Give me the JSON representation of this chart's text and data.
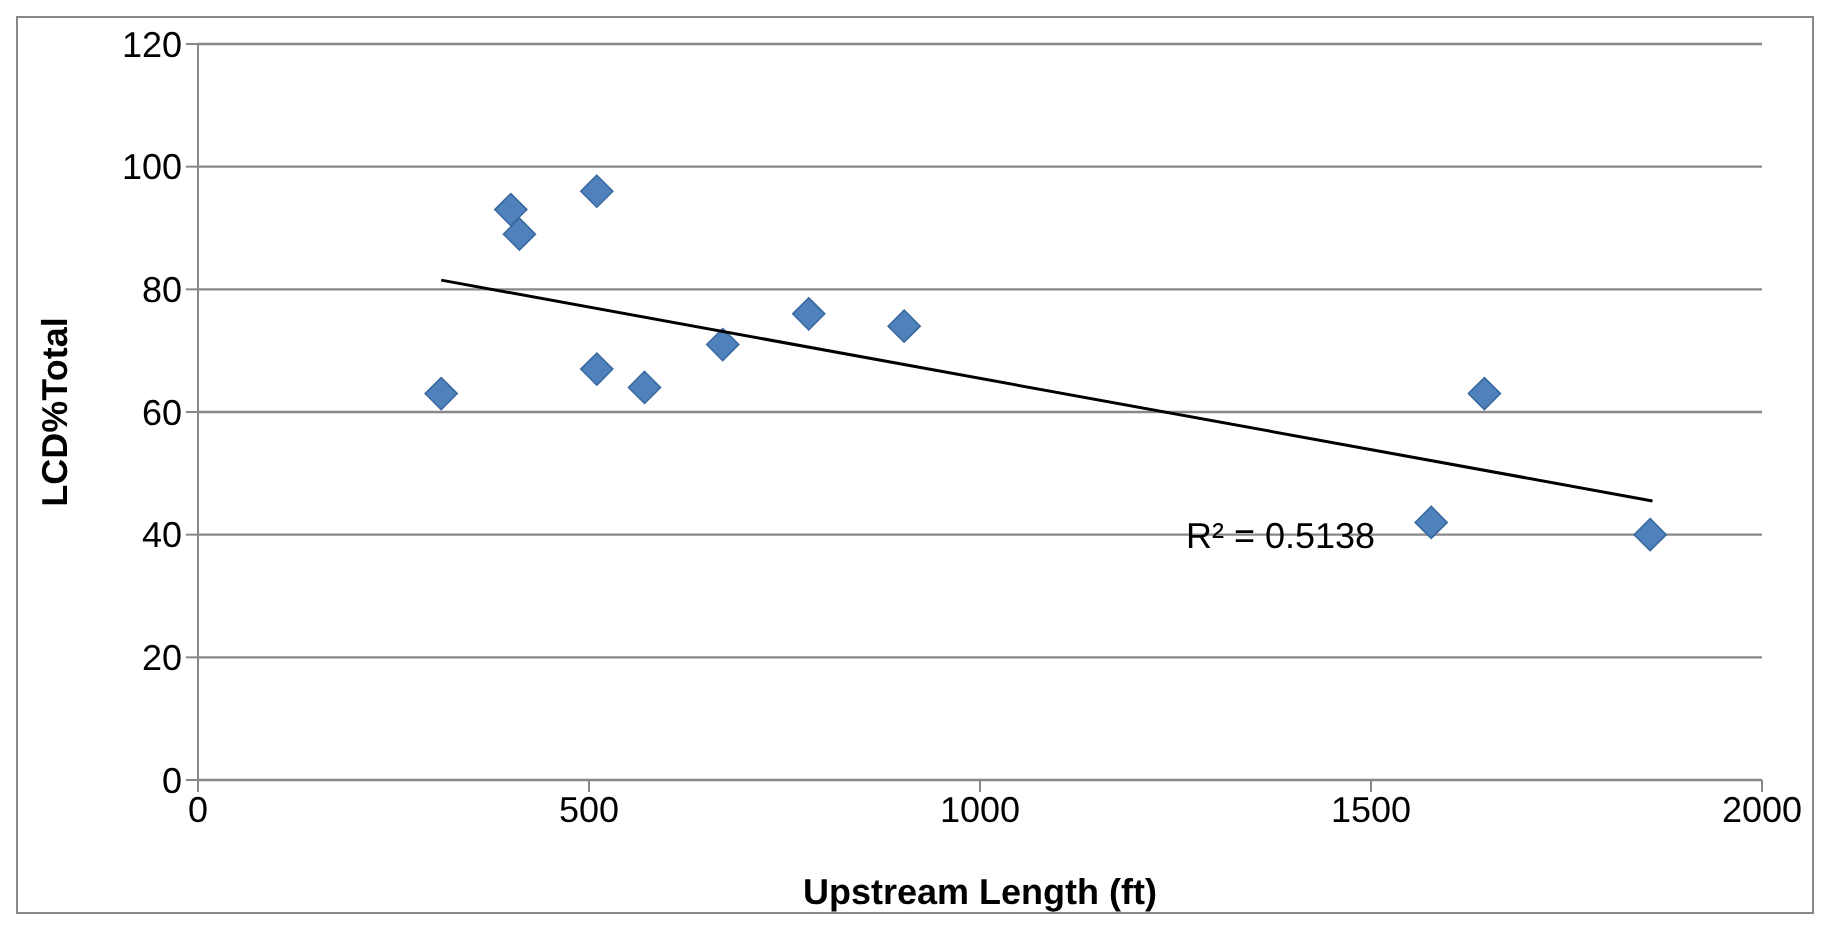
{
  "chart_data": {
    "type": "scatter",
    "xlabel": "Upstream Length (ft)",
    "ylabel": "LCD%Total",
    "xlim": [
      0,
      2000
    ],
    "xticks": [
      0,
      500,
      1000,
      1500,
      2000
    ],
    "ylim": [
      0,
      120
    ],
    "yticks": [
      0,
      20,
      40,
      60,
      80,
      100,
      120
    ],
    "grid": "y",
    "legend": false,
    "annotations": [
      "R² = 0.5138"
    ],
    "series": [
      {
        "color": "#4f81bd",
        "marker": "diamond",
        "x": [
          311,
          400,
          411,
          510,
          510,
          571,
          671,
          781,
          903,
          1577,
          1645,
          1857
        ],
        "values": [
          63,
          93,
          89,
          96,
          67,
          64,
          71,
          76,
          74,
          42,
          63,
          40
        ]
      },
      {
        "type": "line",
        "marker": "none",
        "color": "#000000",
        "x": [
          311,
          1860
        ],
        "values": [
          81.5,
          45.5
        ]
      }
    ]
  }
}
